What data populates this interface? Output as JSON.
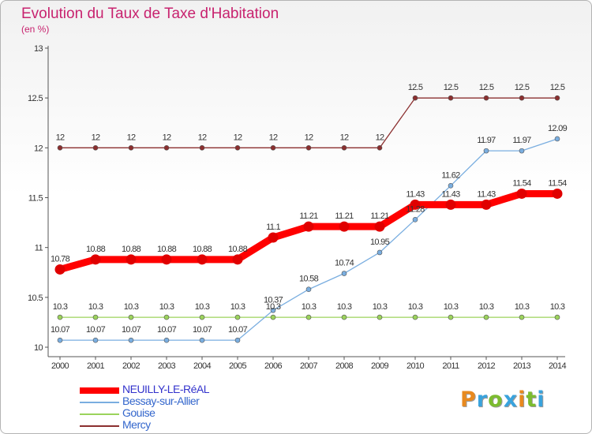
{
  "title": "Evolution du Taux de Taxe d'Habitation",
  "subtitle": "(en %)",
  "brand": {
    "letters": [
      "P",
      "r",
      "o",
      "x",
      "i",
      "t",
      "i"
    ],
    "colors": [
      "#e8891e",
      "#39a3dd",
      "#7cbc2f",
      "#39a3dd",
      "#e8891e",
      "#7cbc2f",
      "#39a3dd"
    ]
  },
  "chart_data": {
    "type": "line",
    "x": [
      "2000",
      "2001",
      "2002",
      "2003",
      "2004",
      "2005",
      "2006",
      "2007",
      "2008",
      "2009",
      "2010",
      "2011",
      "2012",
      "2013",
      "2014"
    ],
    "ylim": [
      10,
      13
    ],
    "yticks": [
      "10",
      "10.5",
      "11",
      "11.5",
      "12",
      "12.5",
      "13"
    ],
    "grid": false,
    "legend": "bottom-left",
    "series": [
      {
        "name": "NEUILLY-LE-RéAL",
        "color": "#ff0000",
        "values": [
          10.78,
          10.88,
          10.88,
          10.88,
          10.88,
          10.88,
          11.1,
          11.21,
          11.21,
          11.21,
          11.43,
          11.43,
          11.43,
          11.54,
          11.54
        ],
        "labels": [
          "10.78",
          "10.88",
          "10.88",
          "10.88",
          "10.88",
          "10.88",
          "11.1",
          "11.21",
          "11.21",
          "11.21",
          "11.43",
          "11.43",
          "11.43",
          "11.54",
          "11.54"
        ]
      },
      {
        "name": "Bessay-sur-Allier",
        "color": "#7aaee0",
        "values": [
          10.07,
          10.07,
          10.07,
          10.07,
          10.07,
          10.07,
          10.37,
          10.58,
          10.74,
          10.95,
          11.28,
          11.62,
          11.97,
          11.97,
          12.09
        ],
        "labels": [
          "10.07",
          "10.07",
          "10.07",
          "10.07",
          "10.07",
          "10.07",
          "10.37",
          "10.58",
          "10.74",
          "10.95",
          "11.28",
          "11.62",
          "11.97",
          "11.97",
          "12.09"
        ]
      },
      {
        "name": "Gouise",
        "color": "#9bd35b",
        "values": [
          10.3,
          10.3,
          10.3,
          10.3,
          10.3,
          10.3,
          10.3,
          10.3,
          10.3,
          10.3,
          10.3,
          10.3,
          10.3,
          10.3,
          10.3
        ],
        "labels": [
          "10.3",
          "10.3",
          "10.3",
          "10.3",
          "10.3",
          "10.3",
          "10.3",
          "10.3",
          "10.3",
          "10.3",
          "10.3",
          "10.3",
          "10.3",
          "10.3",
          "10.3"
        ]
      },
      {
        "name": "Mercy",
        "color": "#8b2f2f",
        "values": [
          12,
          12,
          12,
          12,
          12,
          12,
          12,
          12,
          12,
          12,
          12.5,
          12.5,
          12.5,
          12.5,
          12.5
        ],
        "labels": [
          "12",
          "12",
          "12",
          "12",
          "12",
          "12",
          "12",
          "12",
          "12",
          "12",
          "12.5",
          "12.5",
          "12.5",
          "12.5",
          "12.5"
        ]
      }
    ]
  }
}
